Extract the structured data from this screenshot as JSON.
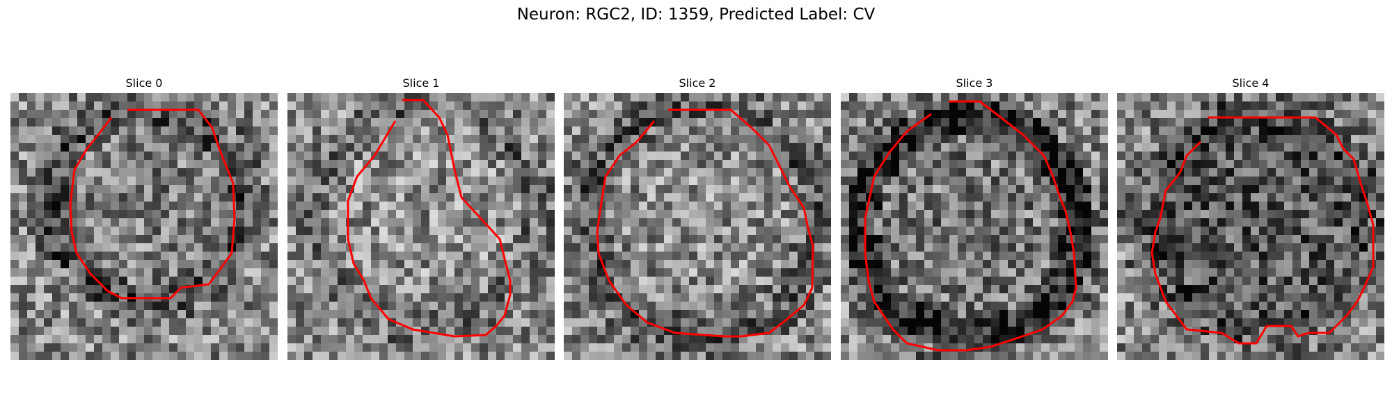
{
  "figure": {
    "title": "Neuron: RGC2, ID: 1359, Predicted Label: CV"
  },
  "panels": [
    {
      "title": "Slice 0"
    },
    {
      "title": "Slice 1"
    },
    {
      "title": "Slice 2"
    },
    {
      "title": "Slice 3"
    },
    {
      "title": "Slice 4"
    }
  ],
  "colors": {
    "contour": "#ff0000",
    "background": "#ffffff",
    "colormap": "grayscale"
  }
}
